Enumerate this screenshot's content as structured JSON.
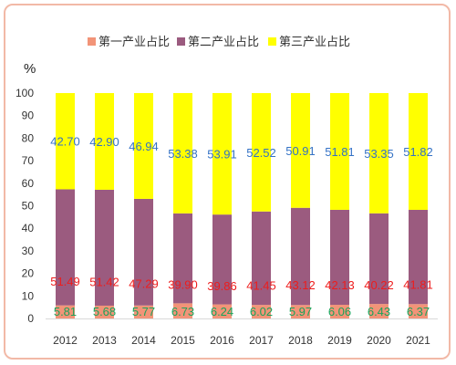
{
  "chart_data": {
    "type": "bar",
    "stacked": true,
    "title": "",
    "unit_label": "%",
    "categories": [
      "2012",
      "2013",
      "2014",
      "2015",
      "2016",
      "2017",
      "2018",
      "2019",
      "2020",
      "2021"
    ],
    "series": [
      {
        "name": "第一产业占比",
        "values": [
          5.81,
          5.68,
          5.77,
          6.73,
          6.24,
          6.02,
          5.97,
          6.06,
          6.43,
          6.37
        ],
        "labels": [
          "5.81",
          "5.68",
          "5.77",
          "6.73",
          "6.24",
          "6.02",
          "5.97",
          "6.06",
          "6.43",
          "6.37"
        ],
        "color": "#f29478",
        "label_color": "#1aa35a"
      },
      {
        "name": "第二产业占比",
        "values": [
          51.49,
          51.42,
          47.29,
          39.9,
          39.86,
          41.45,
          43.12,
          42.13,
          40.22,
          41.81
        ],
        "labels": [
          "51.49",
          "51.42",
          "47.29",
          "39.90",
          "39.86",
          "41.45",
          "43.12",
          "42.13",
          "40.22",
          "41.81"
        ],
        "color": "#9b5b7f",
        "label_color": "#ee1c1c"
      },
      {
        "name": "第三产业占比",
        "values": [
          42.7,
          42.9,
          46.94,
          53.38,
          53.91,
          52.52,
          50.91,
          51.81,
          53.35,
          51.82
        ],
        "labels": [
          "42.70",
          "42.90",
          "46.94",
          "53.38",
          "53.91",
          "52.52",
          "50.91",
          "51.81",
          "53.35",
          "51.82"
        ],
        "color": "#ffff00",
        "label_color": "#3472c4"
      }
    ],
    "y_ticks": [
      "0",
      "10",
      "20",
      "30",
      "40",
      "50",
      "60",
      "70",
      "80",
      "90",
      "100"
    ],
    "ylim": [
      0,
      100
    ],
    "grid": false,
    "legend_position": "top-center"
  }
}
